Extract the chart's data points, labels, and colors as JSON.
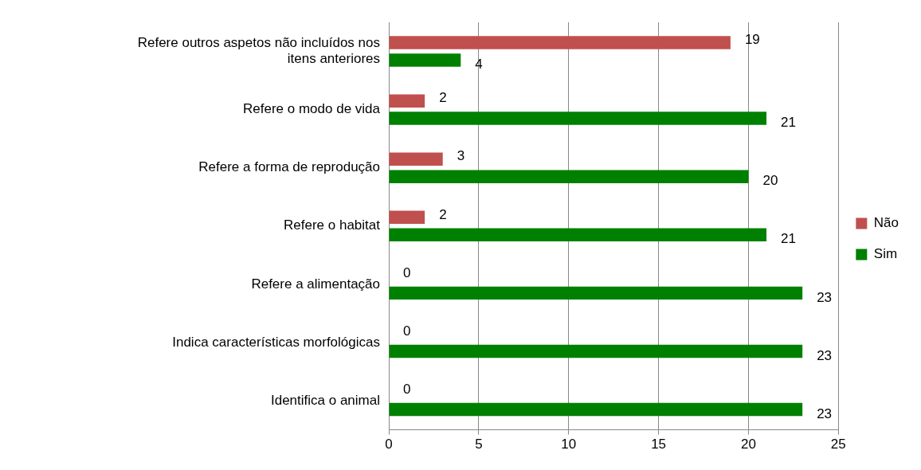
{
  "chart_data": {
    "type": "bar",
    "orientation": "horizontal",
    "categories": [
      "Refere outros aspetos não incluídos nos itens anteriores",
      "Refere o modo de vida",
      "Refere a forma de reprodução",
      "Refere o habitat",
      "Refere a alimentação",
      "Indica características morfológicas",
      "Identifica o animal"
    ],
    "series": [
      {
        "name": "Não",
        "color": "#c0504d",
        "values": [
          19,
          2,
          3,
          2,
          0,
          0,
          0
        ]
      },
      {
        "name": "Sim",
        "color": "#008000",
        "values": [
          4,
          21,
          20,
          21,
          23,
          23,
          23
        ]
      }
    ],
    "xlim": [
      0,
      25
    ],
    "xticks": [
      0,
      5,
      10,
      15,
      20,
      25
    ],
    "grid": "x",
    "legend": "right",
    "data_labels": true
  }
}
